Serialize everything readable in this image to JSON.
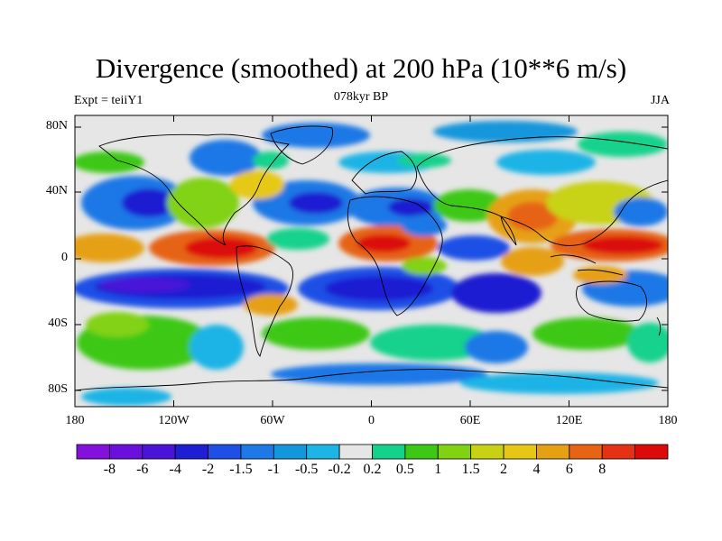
{
  "title": "Divergence (smoothed) at 200 hPa (10**6 m/s)",
  "subtitle_left": "Expt = teiiY1",
  "subtitle_center": "078kyr BP",
  "subtitle_right": "JJA",
  "lat_ticks": [
    "80N",
    "40N",
    "0",
    "40S",
    "80S"
  ],
  "lon_ticks": [
    "180",
    "120W",
    "60W",
    "0",
    "60E",
    "120E",
    "180"
  ],
  "colorbar": {
    "colors": [
      "#8410dc",
      "#6a0fdc",
      "#4a14d8",
      "#1e1ed2",
      "#1e50e6",
      "#1e78e6",
      "#1496dc",
      "#1eb4e6",
      "#e6e6e6",
      "#14d28c",
      "#3cc814",
      "#82d214",
      "#c8d214",
      "#e6c814",
      "#e6a014",
      "#e66414",
      "#e63214",
      "#dc0a0a"
    ],
    "labels": [
      "-8",
      "-6",
      "-4",
      "-2",
      "-1.5",
      "-1",
      "-0.5",
      "-0.2",
      "0.2",
      "0.5",
      "1",
      "1.5",
      "2",
      "4",
      "6",
      "8"
    ]
  }
}
